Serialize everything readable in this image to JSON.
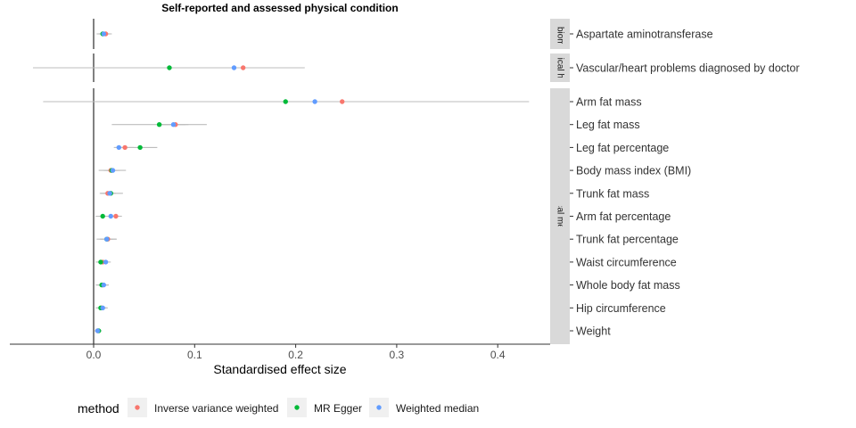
{
  "chart_data": {
    "type": "scatter",
    "title": "Self-reported and assessed physical condition",
    "xlabel": "Standardised effect size",
    "xlim": [
      -0.082,
      0.455
    ],
    "xticks": [
      "0.0",
      "0.1",
      "0.2",
      "0.3",
      "0.4"
    ],
    "xtick_values": [
      0.0,
      0.1,
      0.2,
      0.3,
      0.4
    ],
    "reference_line": 0,
    "grid": false,
    "legend": {
      "title": "method",
      "position": "bottom",
      "entries": [
        {
          "name": "Inverse variance weighted",
          "color": "#F8766D"
        },
        {
          "name": "MR Egger",
          "color": "#00BA38"
        },
        {
          "name": "Weighted median",
          "color": "#619CFF"
        }
      ]
    },
    "facets": [
      {
        "strip": "Blood biomarker",
        "rows": [
          {
            "label": "Aspartate aminotransferase",
            "points": [
              {
                "method": "Inverse variance weighted",
                "x": 0.012,
                "lo": 0.006,
                "hi": 0.018
              },
              {
                "method": "MR Egger",
                "x": 0.009,
                "lo": 0.003,
                "hi": 0.015
              },
              {
                "method": "Weighted median",
                "x": 0.01,
                "lo": 0.005,
                "hi": 0.016
              }
            ]
          }
        ]
      },
      {
        "strip": "Physical health",
        "rows": [
          {
            "label": "Vascular/heart problems diagnosed by doctor",
            "points": [
              {
                "method": "Inverse variance weighted",
                "x": 0.148,
                "lo": 0.098,
                "hi": 0.198
              },
              {
                "method": "MR Egger",
                "x": 0.075,
                "lo": -0.06,
                "hi": 0.209
              },
              {
                "method": "Weighted median",
                "x": 0.139,
                "lo": 0.08,
                "hi": 0.18
              }
            ]
          }
        ]
      },
      {
        "strip": "Physical measure",
        "rows": [
          {
            "label": "Arm fat mass",
            "points": [
              {
                "method": "Inverse variance weighted",
                "x": 0.246,
                "lo": 0.185,
                "hi": 0.327
              },
              {
                "method": "MR Egger",
                "x": 0.19,
                "lo": -0.05,
                "hi": 0.431
              },
              {
                "method": "Weighted median",
                "x": 0.219,
                "lo": 0.16,
                "hi": 0.28
              }
            ]
          },
          {
            "label": "Leg fat mass",
            "points": [
              {
                "method": "Inverse variance weighted",
                "x": 0.081,
                "lo": 0.067,
                "hi": 0.094
              },
              {
                "method": "MR Egger",
                "x": 0.065,
                "lo": 0.018,
                "hi": 0.112
              },
              {
                "method": "Weighted median",
                "x": 0.079,
                "lo": 0.067,
                "hi": 0.091
              }
            ]
          },
          {
            "label": "Leg fat percentage",
            "points": [
              {
                "method": "Inverse variance weighted",
                "x": 0.031,
                "lo": 0.022,
                "hi": 0.04
              },
              {
                "method": "MR Egger",
                "x": 0.046,
                "lo": 0.03,
                "hi": 0.063
              },
              {
                "method": "Weighted median",
                "x": 0.025,
                "lo": 0.02,
                "hi": 0.031
              }
            ]
          },
          {
            "label": "Body mass index (BMI)",
            "points": [
              {
                "method": "Inverse variance weighted",
                "x": 0.017,
                "lo": 0.01,
                "hi": 0.024
              },
              {
                "method": "MR Egger",
                "x": 0.018,
                "lo": 0.005,
                "hi": 0.032
              },
              {
                "method": "Weighted median",
                "x": 0.019,
                "lo": 0.012,
                "hi": 0.026
              }
            ]
          },
          {
            "label": "Trunk fat mass",
            "points": [
              {
                "method": "Inverse variance weighted",
                "x": 0.014,
                "lo": 0.007,
                "hi": 0.021
              },
              {
                "method": "MR Egger",
                "x": 0.017,
                "lo": 0.006,
                "hi": 0.029
              },
              {
                "method": "Weighted median",
                "x": 0.016,
                "lo": 0.01,
                "hi": 0.022
              }
            ]
          },
          {
            "label": "Arm fat percentage",
            "points": [
              {
                "method": "Inverse variance weighted",
                "x": 0.022,
                "lo": 0.015,
                "hi": 0.028
              },
              {
                "method": "MR Egger",
                "x": 0.009,
                "lo": 0.002,
                "hi": 0.016
              },
              {
                "method": "Weighted median",
                "x": 0.017,
                "lo": 0.011,
                "hi": 0.023
              }
            ]
          },
          {
            "label": "Trunk fat percentage",
            "points": [
              {
                "method": "Inverse variance weighted",
                "x": 0.014,
                "lo": 0.006,
                "hi": 0.022
              },
              {
                "method": "MR Egger",
                "x": 0.013,
                "lo": 0.003,
                "hi": 0.023
              },
              {
                "method": "Weighted median",
                "x": 0.013,
                "lo": 0.007,
                "hi": 0.019
              }
            ]
          },
          {
            "label": "Waist circumference",
            "points": [
              {
                "method": "Inverse variance weighted",
                "x": 0.009,
                "lo": 0.004,
                "hi": 0.014
              },
              {
                "method": "MR Egger",
                "x": 0.007,
                "lo": 0.002,
                "hi": 0.012
              },
              {
                "method": "Weighted median",
                "x": 0.012,
                "lo": 0.007,
                "hi": 0.017
              }
            ]
          },
          {
            "label": "Whole body fat mass",
            "points": [
              {
                "method": "Inverse variance weighted",
                "x": 0.009,
                "lo": 0.003,
                "hi": 0.015
              },
              {
                "method": "MR Egger",
                "x": 0.008,
                "lo": 0.002,
                "hi": 0.014
              },
              {
                "method": "Weighted median",
                "x": 0.01,
                "lo": 0.005,
                "hi": 0.015
              }
            ]
          },
          {
            "label": "Hip circumference",
            "points": [
              {
                "method": "Inverse variance weighted",
                "x": 0.008,
                "lo": 0.003,
                "hi": 0.013
              },
              {
                "method": "MR Egger",
                "x": 0.007,
                "lo": 0.002,
                "hi": 0.012
              },
              {
                "method": "Weighted median",
                "x": 0.009,
                "lo": 0.005,
                "hi": 0.014
              }
            ]
          },
          {
            "label": "Weight",
            "points": [
              {
                "method": "Inverse variance weighted",
                "x": 0.004,
                "lo": 0.001,
                "hi": 0.007
              },
              {
                "method": "MR Egger",
                "x": 0.005,
                "lo": 0.002,
                "hi": 0.008
              },
              {
                "method": "Weighted median",
                "x": 0.004,
                "lo": 0.001,
                "hi": 0.007
              }
            ]
          }
        ]
      }
    ]
  }
}
